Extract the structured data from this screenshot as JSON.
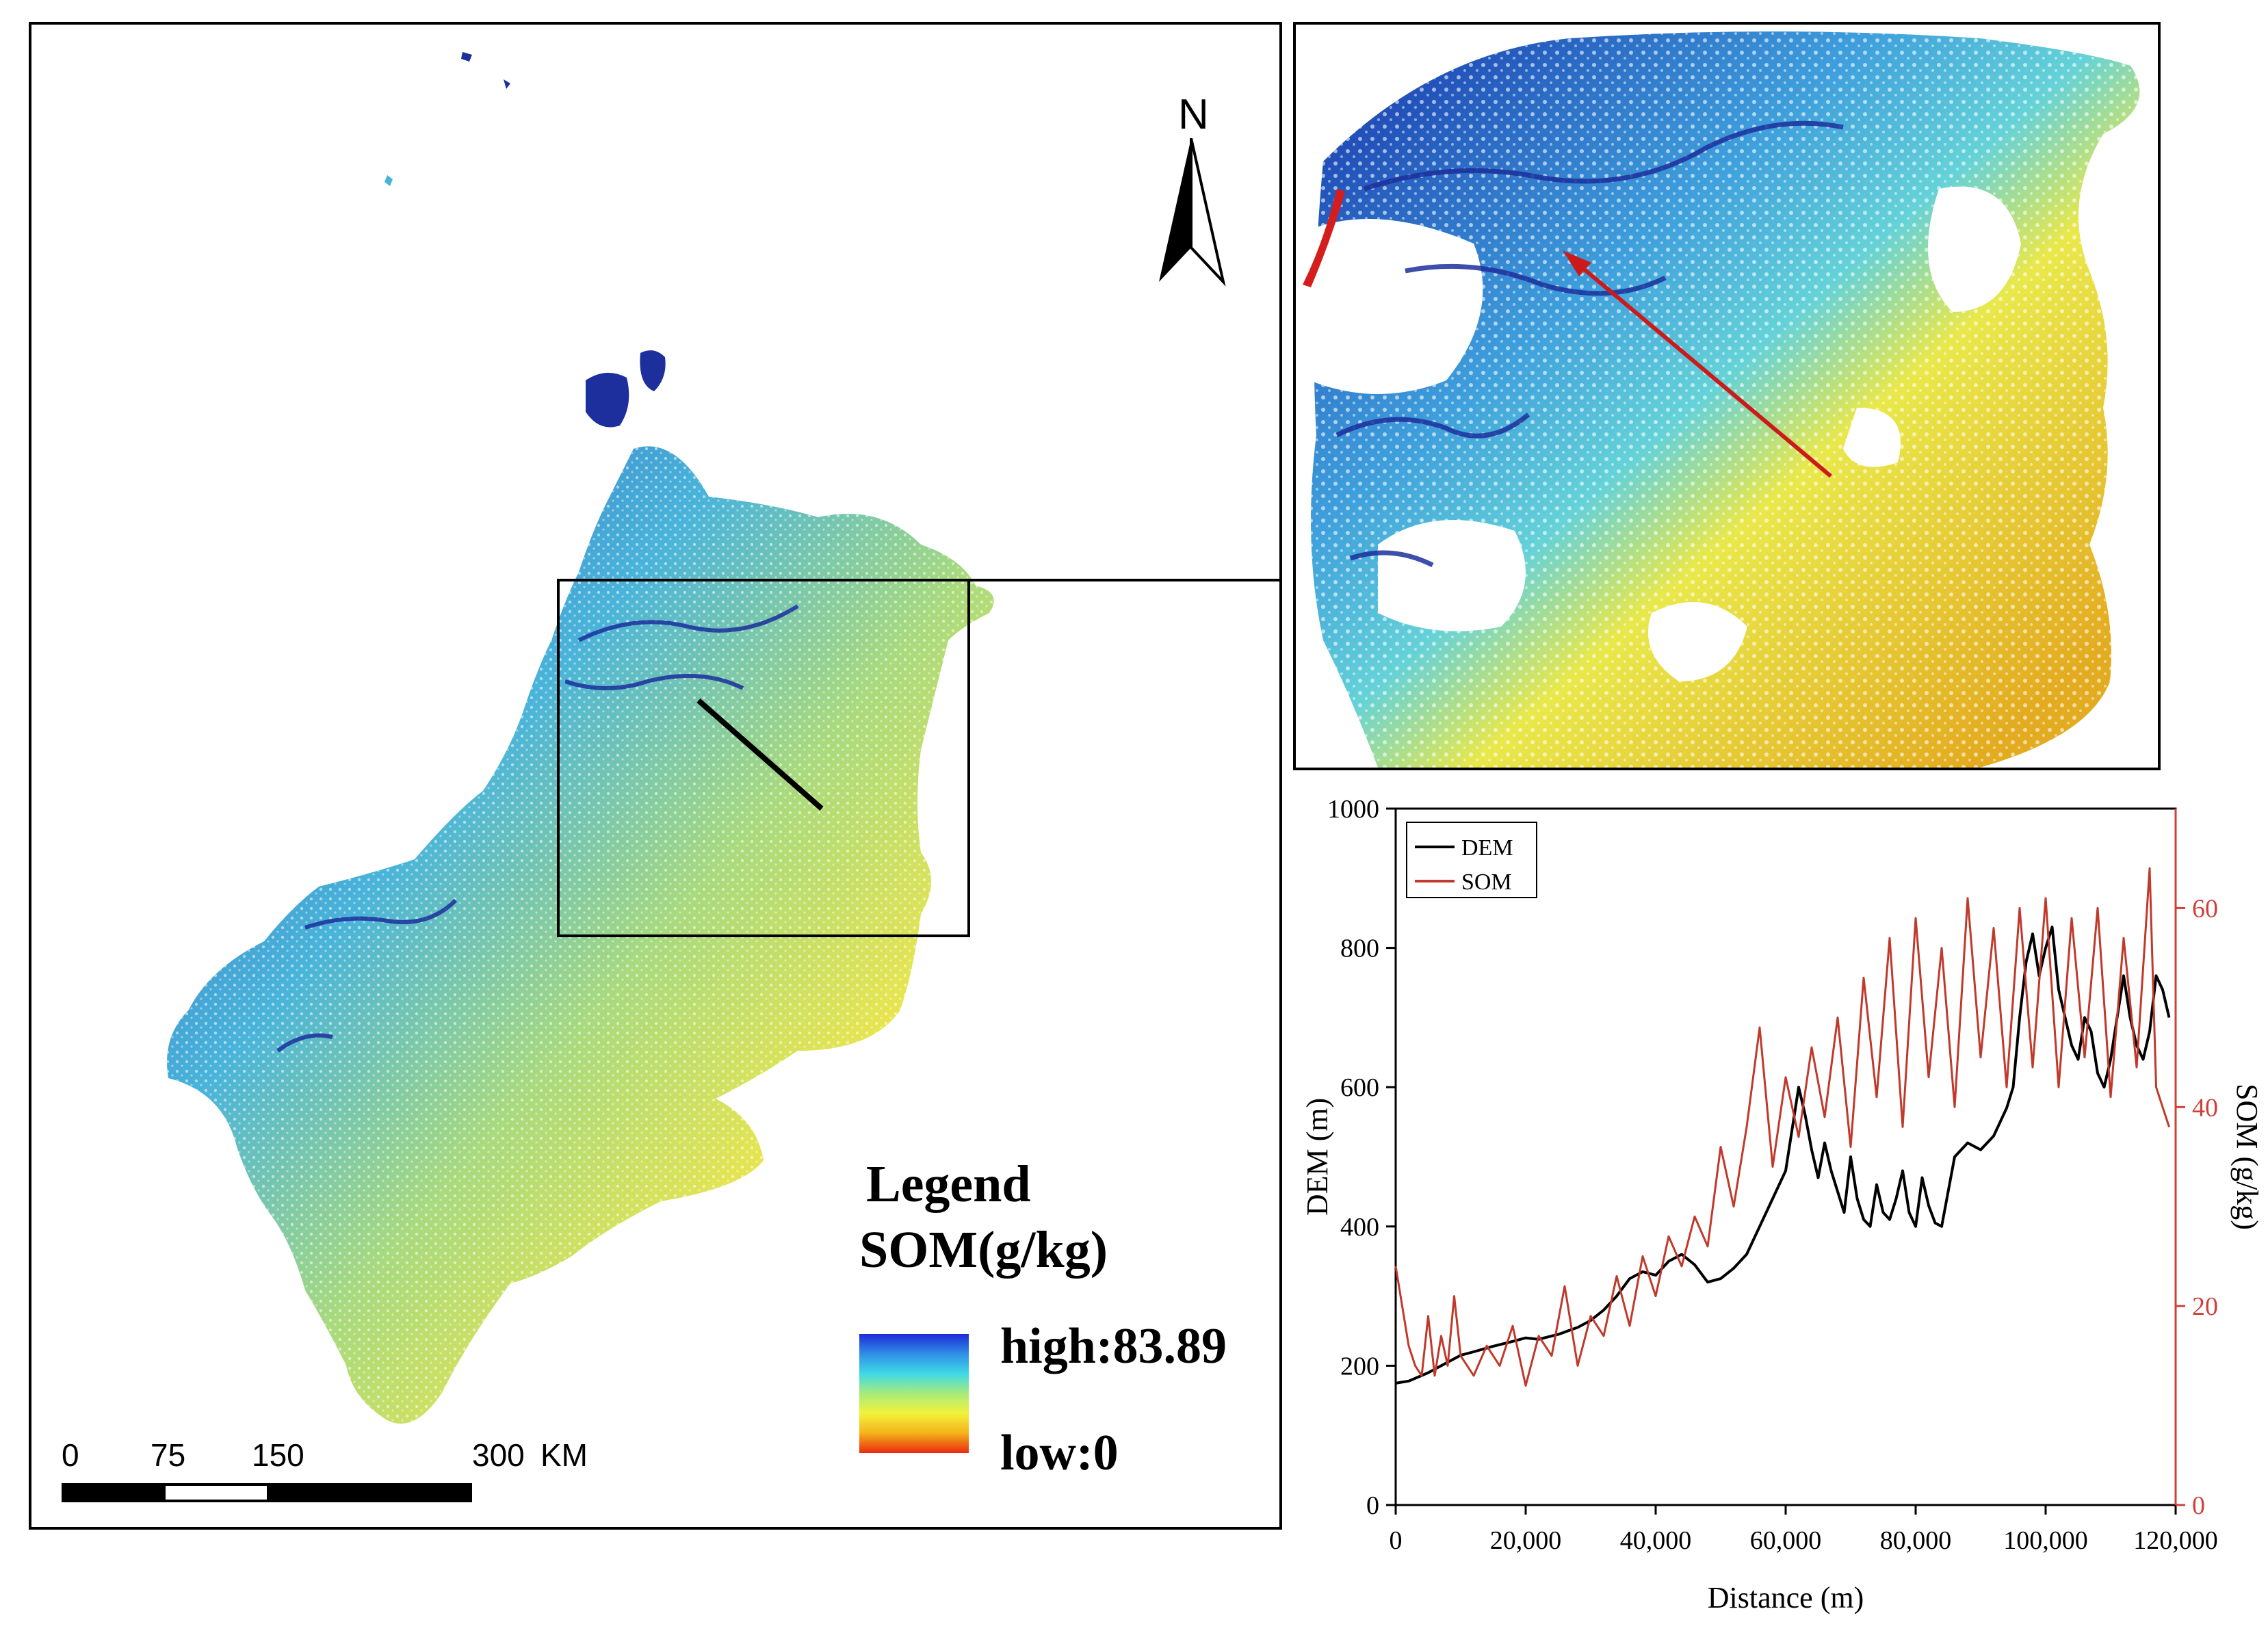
{
  "map": {
    "north_label": "N",
    "legend": {
      "title": "Legend",
      "variable": "SOM(g/kg)",
      "high_label": "high:83.89",
      "low_label": "low:0",
      "high_value": 83.89,
      "low_value": 0,
      "ramp_colors": [
        "#1d2bd6",
        "#2f8fe6",
        "#3fd9e6",
        "#a8ec7a",
        "#f2f23a",
        "#f5b21a",
        "#ea2a10"
      ]
    },
    "scale_bar": {
      "ticks": [
        "0",
        "75",
        "150",
        "300"
      ],
      "unit": "KM"
    },
    "colors": {
      "deep_blue": "#1c2f9c",
      "blue": "#2e6fce",
      "cyan": "#4fc4dc",
      "green": "#a7d97f",
      "yellow": "#eee64a",
      "orange": "#e9b21d",
      "red": "#d61d1d",
      "transect_main": "#000000",
      "transect_inset": "#cc1a1a"
    }
  },
  "chart_data": {
    "type": "line",
    "title": "",
    "xlabel": "Distance (m)",
    "ylabel": "DEM (m)",
    "y2label": "SOM (g/kg)",
    "xlim": [
      0,
      120000
    ],
    "ylim": [
      0,
      1000
    ],
    "y2lim": [
      0,
      70
    ],
    "x_ticks": [
      "0",
      "20,000",
      "40,000",
      "60,000",
      "80,000",
      "100,000",
      "120,000"
    ],
    "y_ticks": [
      "0",
      "200",
      "400",
      "600",
      "800",
      "1000"
    ],
    "y2_ticks": [
      "0",
      "20",
      "40",
      "60"
    ],
    "legend": [
      "DEM",
      "SOM"
    ],
    "legend_position": "top-left",
    "series": [
      {
        "name": "DEM",
        "axis": "left",
        "color": "#000000",
        "x": [
          0,
          2000,
          5000,
          8000,
          10000,
          12000,
          15000,
          18000,
          20000,
          22000,
          25000,
          28000,
          30000,
          32000,
          34000,
          36000,
          38000,
          40000,
          42000,
          44000,
          46000,
          48000,
          50000,
          52000,
          54000,
          56000,
          58000,
          60000,
          61000,
          62000,
          63000,
          64000,
          65000,
          66000,
          67000,
          68000,
          69000,
          70000,
          71000,
          72000,
          73000,
          74000,
          75000,
          76000,
          77000,
          78000,
          79000,
          80000,
          81000,
          82000,
          83000,
          84000,
          85000,
          86000,
          88000,
          90000,
          92000,
          94000,
          95000,
          96000,
          97000,
          98000,
          99000,
          100000,
          101000,
          102000,
          103000,
          104000,
          105000,
          106000,
          107000,
          108000,
          109000,
          110000,
          111000,
          112000,
          113000,
          114000,
          115000,
          116000,
          117000,
          118000,
          119000
        ],
        "values": [
          175,
          178,
          190,
          205,
          215,
          220,
          228,
          235,
          240,
          238,
          245,
          255,
          265,
          280,
          300,
          325,
          335,
          330,
          350,
          360,
          345,
          320,
          325,
          340,
          360,
          400,
          440,
          480,
          540,
          600,
          560,
          510,
          470,
          520,
          480,
          450,
          420,
          500,
          440,
          410,
          400,
          460,
          420,
          410,
          440,
          480,
          420,
          400,
          470,
          430,
          405,
          400,
          450,
          500,
          520,
          510,
          530,
          570,
          600,
          700,
          780,
          820,
          760,
          800,
          830,
          740,
          700,
          660,
          640,
          700,
          680,
          620,
          600,
          640,
          700,
          760,
          700,
          660,
          640,
          680,
          760,
          740,
          700
        ]
      },
      {
        "name": "SOM",
        "axis": "right",
        "color": "#c0392b",
        "x": [
          0,
          1000,
          2000,
          3000,
          4000,
          5000,
          6000,
          7000,
          8000,
          9000,
          10000,
          12000,
          14000,
          16000,
          18000,
          20000,
          22000,
          24000,
          26000,
          28000,
          30000,
          32000,
          34000,
          36000,
          38000,
          40000,
          42000,
          44000,
          46000,
          48000,
          50000,
          52000,
          54000,
          56000,
          58000,
          60000,
          62000,
          64000,
          66000,
          68000,
          70000,
          72000,
          74000,
          76000,
          78000,
          80000,
          82000,
          84000,
          86000,
          88000,
          90000,
          92000,
          94000,
          96000,
          98000,
          100000,
          102000,
          104000,
          106000,
          108000,
          110000,
          112000,
          114000,
          116000,
          117000,
          118000,
          119000
        ],
        "values": [
          24,
          20,
          16,
          14,
          13,
          19,
          13,
          17,
          14,
          21,
          15,
          13,
          16,
          14,
          18,
          12,
          17,
          15,
          22,
          14,
          19,
          17,
          23,
          18,
          25,
          21,
          27,
          24,
          29,
          26,
          36,
          30,
          38,
          48,
          34,
          43,
          37,
          46,
          39,
          49,
          36,
          53,
          41,
          57,
          38,
          59,
          43,
          56,
          40,
          61,
          45,
          58,
          42,
          60,
          44,
          61,
          42,
          59,
          45,
          60,
          41,
          57,
          44,
          64,
          42,
          40,
          38
        ]
      }
    ]
  }
}
